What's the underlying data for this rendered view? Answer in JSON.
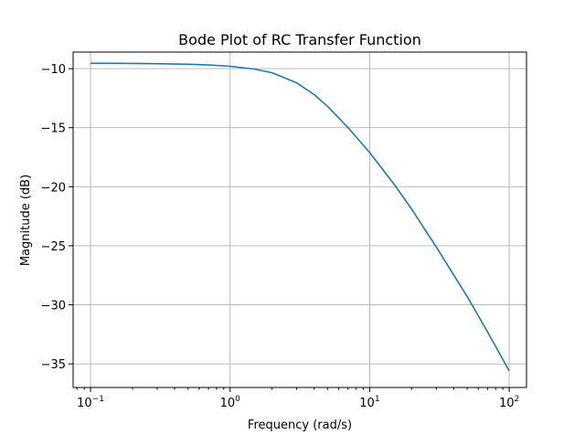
{
  "chart_data": {
    "type": "line",
    "title": "Bode Plot of RC Transfer Function",
    "xlabel": "Frequency (rad/s)",
    "ylabel": "Magnitude (dB)",
    "xscale": "log",
    "xlim": [
      0.075,
      133
    ],
    "ylim": [
      -37,
      -8.6
    ],
    "grid": true,
    "xticks": [
      {
        "value": 0.1,
        "base": "10",
        "exp": "−1"
      },
      {
        "value": 1,
        "base": "10",
        "exp": "0"
      },
      {
        "value": 10,
        "base": "10",
        "exp": "1"
      },
      {
        "value": 100,
        "base": "10",
        "exp": "2"
      }
    ],
    "yticks": [
      {
        "value": -10,
        "label": "−10"
      },
      {
        "value": -15,
        "label": "−15"
      },
      {
        "value": -20,
        "label": "−20"
      },
      {
        "value": -25,
        "label": "−25"
      },
      {
        "value": -30,
        "label": "−30"
      },
      {
        "value": -35,
        "label": "−35"
      }
    ],
    "series": [
      {
        "color": "#1f77b4",
        "x": [
          0.1,
          0.2,
          0.3,
          0.5,
          0.7,
          1,
          1.5,
          2,
          3,
          4,
          5,
          7,
          10,
          15,
          20,
          30,
          50,
          70,
          100
        ],
        "y": [
          -9.55,
          -9.56,
          -9.58,
          -9.63,
          -9.69,
          -9.8,
          -10.04,
          -10.35,
          -11.2,
          -12.2,
          -13.2,
          -15.0,
          -17.1,
          -19.8,
          -21.9,
          -25.1,
          -29.3,
          -32.3,
          -35.6
        ]
      }
    ]
  }
}
